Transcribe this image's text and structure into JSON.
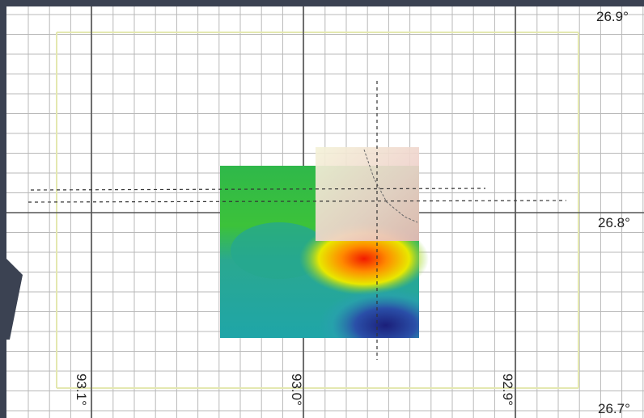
{
  "latitude_labels": [
    "26.9°",
    "26.8°",
    "26.7°"
  ],
  "longitude_labels": [
    "93.1°",
    "93.0°",
    "92.9°"
  ]
}
